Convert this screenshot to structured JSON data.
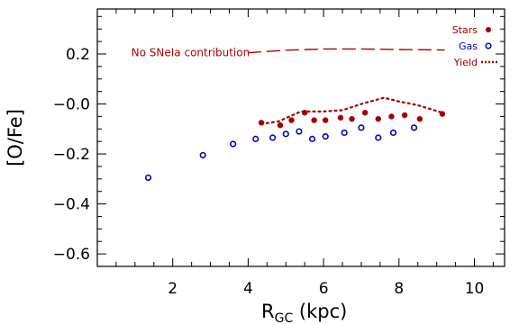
{
  "chart_data": {
    "type": "scatter",
    "xlabel_main": "R",
    "xlabel_sub": "GC",
    "xlabel_unit": " (kpc)",
    "ylabel": "[O/Fe]",
    "xlim": [
      0,
      10.8
    ],
    "ylim": [
      -0.65,
      0.38
    ],
    "x_ticks": [
      2,
      4,
      6,
      8,
      10
    ],
    "x_tick_labels": [
      "2",
      "4",
      "6",
      "8",
      "10"
    ],
    "y_ticks": [
      -0.6,
      -0.4,
      -0.2,
      0.0,
      0.2
    ],
    "y_tick_labels": [
      "−0.6",
      "−0.4",
      "−0.2",
      "−0.0",
      "0.2"
    ],
    "grid": false,
    "legend_position": "top-right",
    "colors": {
      "stars": "#a00000",
      "gas": "#0000c8",
      "yield": "#a00000",
      "annotation": "#b00000",
      "axis": "#000000"
    },
    "series": [
      {
        "name": "Stars",
        "kind": "filled-circle",
        "x": [
          4.35,
          4.85,
          5.15,
          5.5,
          5.75,
          6.05,
          6.45,
          6.75,
          7.1,
          7.45,
          7.8,
          8.15,
          8.55,
          9.15
        ],
        "y": [
          -0.075,
          -0.085,
          -0.065,
          -0.035,
          -0.065,
          -0.065,
          -0.055,
          -0.06,
          -0.035,
          -0.06,
          -0.05,
          -0.045,
          -0.06,
          -0.04
        ]
      },
      {
        "name": "Gas",
        "kind": "open-circle",
        "x": [
          1.35,
          2.8,
          3.6,
          4.2,
          4.65,
          5.0,
          5.35,
          5.7,
          6.05,
          6.55,
          7.0,
          7.45,
          7.85,
          8.4
        ],
        "y": [
          -0.295,
          -0.205,
          -0.16,
          -0.14,
          -0.135,
          -0.12,
          -0.11,
          -0.14,
          -0.13,
          -0.115,
          -0.095,
          -0.135,
          -0.115,
          -0.095
        ]
      },
      {
        "name": "Yield",
        "kind": "dotted-line",
        "x": [
          4.35,
          4.8,
          5.4,
          6.0,
          6.5,
          7.0,
          7.6,
          8.0,
          8.5,
          9.15
        ],
        "y": [
          -0.08,
          -0.07,
          -0.03,
          -0.03,
          -0.025,
          0.0,
          0.025,
          0.01,
          -0.005,
          -0.035
        ]
      },
      {
        "name": "No SNeIa contribution",
        "kind": "dashed-line",
        "x": [
          4.0,
          5.0,
          6.0,
          7.0,
          8.0,
          9.2
        ],
        "y": [
          0.205,
          0.215,
          0.22,
          0.22,
          0.218,
          0.216
        ]
      }
    ],
    "annotations": [
      {
        "text": "No SNeIa contribution",
        "x": 0.9,
        "y": 0.205
      }
    ]
  }
}
